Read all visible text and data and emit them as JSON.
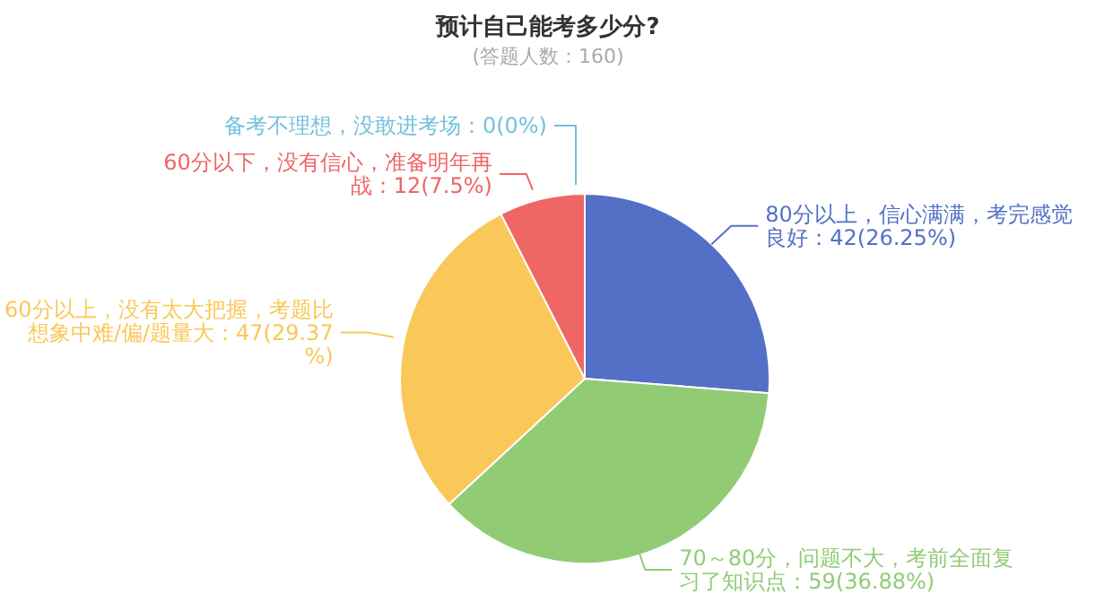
{
  "chart_data": {
    "type": "pie",
    "title": "预计自己能考多少分?",
    "subtitle": "(答题人数：160)",
    "categories": [
      "80分以上，信心满满，考完感觉良好",
      "70～80分，问题不大，考前全面复习了知识点",
      "60分以上，没有太大把握，考题比想象中难/偏/题量大",
      "60分以下，没有信心，准备明年再战",
      "备考不理想，没敢进考场"
    ],
    "values": [
      42,
      59,
      47,
      12,
      0
    ],
    "value_labels": [
      "：42(26.25%)",
      "：59(36.88%)",
      "：47(29.37%)",
      "：12(7.5%)",
      "：0(0%)"
    ],
    "colors": [
      "#5470c6",
      "#91cc75",
      "#fac858",
      "#ee6666",
      "#73c0de"
    ],
    "legend": false
  }
}
